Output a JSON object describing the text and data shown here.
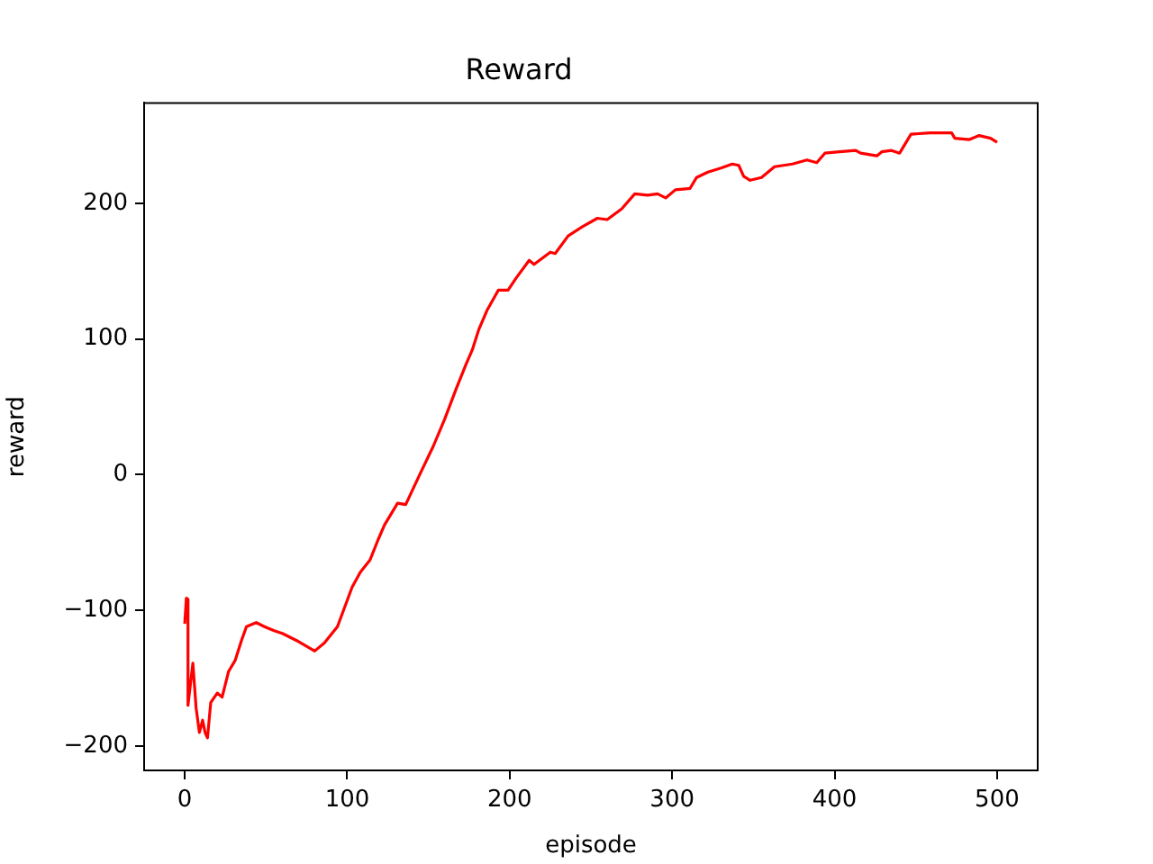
{
  "chart_data": {
    "type": "line",
    "title": "Reward",
    "xlabel": "episode",
    "ylabel": "reward",
    "x": [
      0,
      1,
      2,
      2,
      5,
      7,
      9,
      11,
      12.5,
      14,
      16,
      20,
      23,
      27,
      31,
      35,
      38,
      44,
      49,
      55,
      60,
      70,
      80,
      86,
      94,
      103,
      108,
      114,
      119,
      123,
      131,
      136,
      145,
      153,
      160,
      167,
      173,
      177,
      181,
      186,
      193,
      199,
      204,
      212,
      215,
      225,
      228,
      236,
      245,
      254,
      260,
      269,
      277,
      285,
      291,
      296,
      302,
      311,
      315,
      322,
      330,
      337,
      341,
      344,
      348,
      355,
      363,
      374,
      383,
      389,
      394,
      403,
      413,
      416,
      426,
      429,
      435,
      440,
      447,
      459,
      472,
      474,
      483,
      489,
      496,
      500
    ],
    "series": [
      {
        "color": "#ff0000",
        "values": [
          -110,
          -91,
          -92,
          -170,
          -139,
          -172,
          -190,
          -181,
          -190,
          -194,
          -168,
          -161,
          -164,
          -145,
          -137,
          -122,
          -112,
          -109,
          -112,
          -115,
          -117,
          -123,
          -130,
          -124,
          -112,
          -83,
          -72,
          -63,
          -48,
          -37,
          -21,
          -22,
          1,
          21,
          41,
          63,
          81,
          92,
          107,
          121,
          136,
          136,
          145,
          158,
          155,
          164,
          163,
          176,
          183,
          189,
          188,
          196,
          207,
          206,
          207,
          204,
          210,
          211,
          219,
          223,
          226,
          229,
          228,
          220,
          217,
          219,
          227,
          229,
          232,
          230,
          237,
          238,
          239,
          237,
          235,
          238,
          239,
          237,
          251,
          252,
          252,
          248,
          247,
          250,
          248,
          245
        ]
      }
    ],
    "xlim": [
      -25,
      525
    ],
    "ylim": [
      -218,
      274
    ],
    "xticks": [
      0,
      100,
      200,
      300,
      400,
      500
    ],
    "yticks": [
      {
        "value": -200,
        "label": "−200"
      },
      {
        "value": -100,
        "label": "−100"
      },
      0,
      100,
      200
    ],
    "grid": false,
    "legend": false
  }
}
